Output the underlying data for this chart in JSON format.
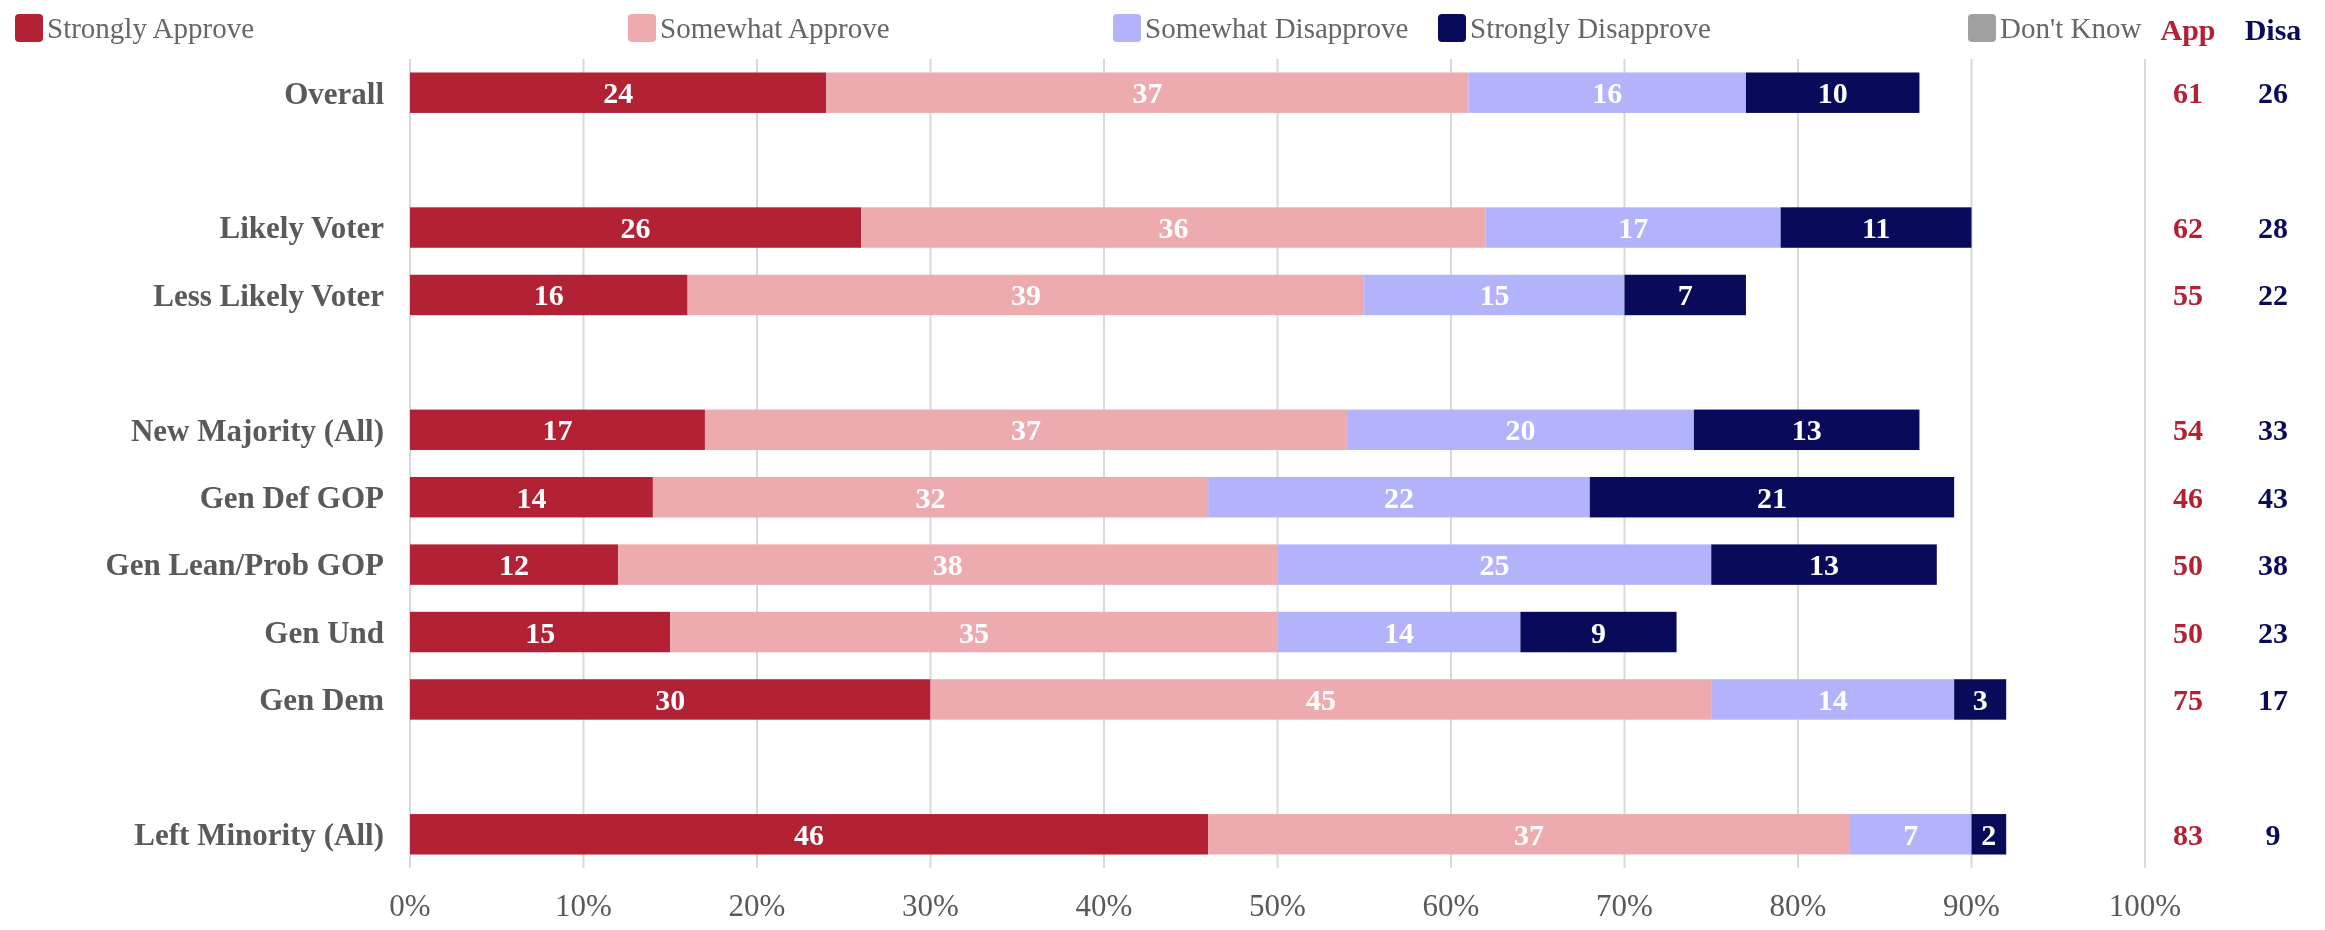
{
  "chart_data": {
    "type": "bar",
    "orientation": "horizontal",
    "stacked": true,
    "categories": [
      "Overall",
      null,
      "Likely Voter",
      "Less Likely Voter",
      null,
      "New Majority (All)",
      "Gen Def GOP",
      "Gen Lean/Prob GOP",
      "Gen Und",
      "Gen Dem",
      null,
      "Left Minority (All)"
    ],
    "series": [
      {
        "name": "Strongly Approve",
        "color": "#b22234",
        "values": [
          24,
          null,
          26,
          16,
          null,
          17,
          14,
          12,
          15,
          30,
          null,
          46
        ]
      },
      {
        "name": "Somewhat Approve",
        "color": "#edabb0",
        "values": [
          37,
          null,
          36,
          39,
          null,
          37,
          32,
          38,
          35,
          45,
          null,
          37
        ]
      },
      {
        "name": "Somewhat Disapprove",
        "color": "#b3b3fb",
        "values": [
          16,
          null,
          17,
          15,
          null,
          20,
          22,
          25,
          14,
          14,
          null,
          7
        ]
      },
      {
        "name": "Strongly Disapprove",
        "color": "#0a0a5a",
        "values": [
          10,
          null,
          11,
          7,
          null,
          13,
          21,
          13,
          9,
          3,
          null,
          2
        ]
      },
      {
        "name": "Don't Know",
        "color": "#a0a0a0",
        "values": [
          null,
          null,
          null,
          null,
          null,
          null,
          null,
          null,
          null,
          null,
          null,
          null
        ]
      }
    ],
    "xlim": [
      0,
      100
    ],
    "xticks": [
      {
        "value": 0,
        "label": "0%"
      },
      {
        "value": 10,
        "label": "10%"
      },
      {
        "value": 20,
        "label": "20%"
      },
      {
        "value": 30,
        "label": "30%"
      },
      {
        "value": 40,
        "label": "40%"
      },
      {
        "value": 50,
        "label": "50%"
      },
      {
        "value": 60,
        "label": "60%"
      },
      {
        "value": 70,
        "label": "70%"
      },
      {
        "value": 80,
        "label": "80%"
      },
      {
        "value": 90,
        "label": "90%"
      },
      {
        "value": 100,
        "label": "100%"
      }
    ],
    "grid": "x",
    "legend": "top",
    "data_labels": true,
    "annotations": [
      "App",
      "Disa",
      "61",
      "26",
      "62",
      "28",
      "55",
      "22",
      "54",
      "33",
      "46",
      "43",
      "50",
      "38",
      "50",
      "23",
      "75",
      "17",
      "83",
      "9"
    ]
  }
}
